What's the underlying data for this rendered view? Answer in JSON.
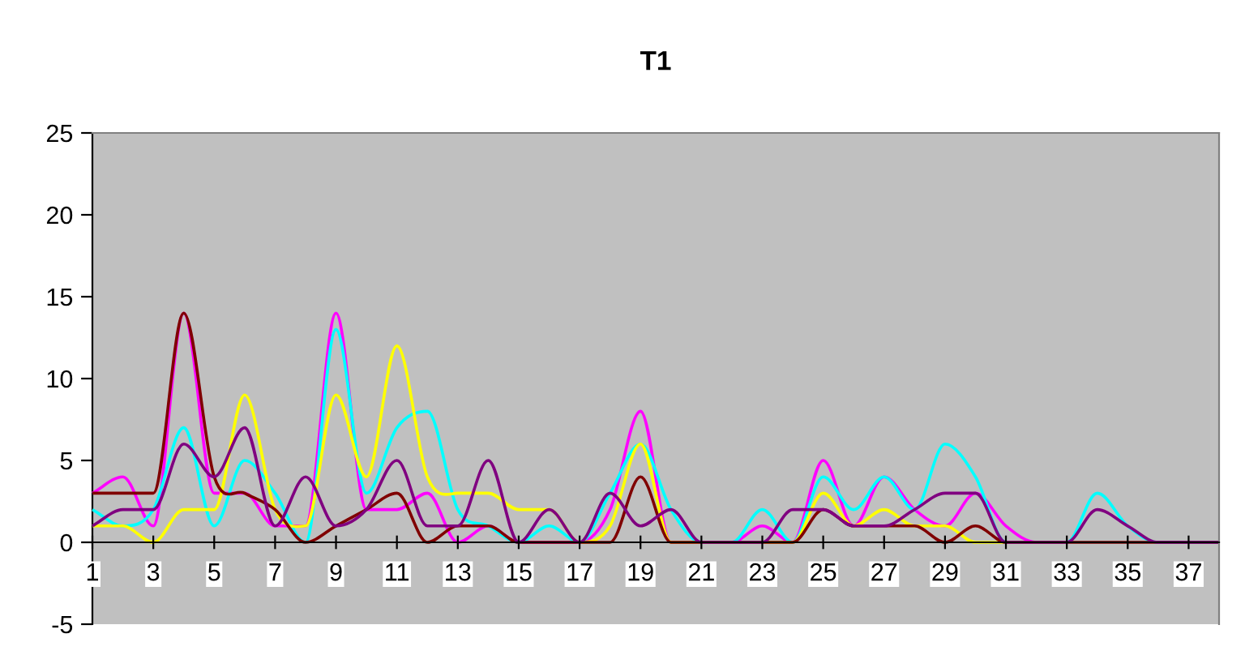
{
  "chart_data": {
    "type": "line",
    "title": "T1",
    "x": [
      1,
      2,
      3,
      4,
      5,
      6,
      7,
      8,
      9,
      10,
      11,
      12,
      13,
      14,
      15,
      16,
      17,
      18,
      19,
      20,
      21,
      22,
      23,
      24,
      25,
      26,
      27,
      28,
      29,
      30,
      31,
      32,
      33,
      34,
      35,
      36,
      37,
      38
    ],
    "xlim": [
      1,
      38
    ],
    "xticks": [
      1,
      3,
      5,
      7,
      9,
      11,
      13,
      15,
      17,
      19,
      21,
      23,
      25,
      27,
      29,
      31,
      33,
      35,
      37
    ],
    "ylim": [
      -5,
      25
    ],
    "yticks": [
      -5,
      0,
      5,
      10,
      15,
      20,
      25
    ],
    "grid": false,
    "marker": "none",
    "line_style": "solid",
    "series": [
      {
        "color": "#ff00ff",
        "values": [
          3,
          4,
          1,
          14,
          3,
          3,
          1,
          1,
          14,
          2,
          2,
          3,
          0,
          1,
          0,
          0,
          0,
          2,
          8,
          0,
          0,
          0,
          1,
          0,
          5,
          1,
          4,
          2,
          1,
          3,
          1,
          0,
          0,
          null,
          null,
          null,
          null,
          null
        ]
      },
      {
        "color": "#00ffff",
        "values": [
          2,
          1,
          2,
          7,
          1,
          5,
          3,
          0,
          13,
          3,
          7,
          8,
          2,
          1,
          0,
          1,
          0,
          3,
          6,
          2,
          0,
          0,
          2,
          0,
          4,
          2,
          4,
          2,
          6,
          4,
          0,
          0,
          0,
          3,
          1,
          0,
          0,
          0
        ]
      },
      {
        "color": "#ffff00",
        "values": [
          1,
          1,
          0,
          2,
          2,
          9,
          2,
          1,
          9,
          4,
          12,
          4,
          3,
          3,
          2,
          2,
          0,
          1,
          6,
          0,
          0,
          0,
          0,
          0,
          3,
          1,
          2,
          1,
          1,
          0,
          0,
          0,
          0,
          null,
          null,
          null,
          null,
          null
        ]
      },
      {
        "color": "#800000",
        "values": [
          3,
          3,
          3,
          14,
          4,
          3,
          2,
          0,
          1,
          2,
          3,
          0,
          1,
          1,
          0,
          0,
          0,
          0,
          4,
          0,
          0,
          0,
          0,
          0,
          2,
          1,
          1,
          1,
          0,
          1,
          0,
          0,
          0,
          0,
          0,
          0,
          0,
          0
        ]
      },
      {
        "color": "#800080",
        "values": [
          1,
          2,
          2,
          6,
          4,
          7,
          1,
          4,
          1,
          2,
          5,
          1,
          1,
          5,
          0,
          2,
          0,
          3,
          1,
          2,
          0,
          0,
          0,
          2,
          2,
          1,
          1,
          2,
          3,
          3,
          0,
          0,
          0,
          2,
          1,
          0,
          0,
          0
        ]
      }
    ]
  }
}
